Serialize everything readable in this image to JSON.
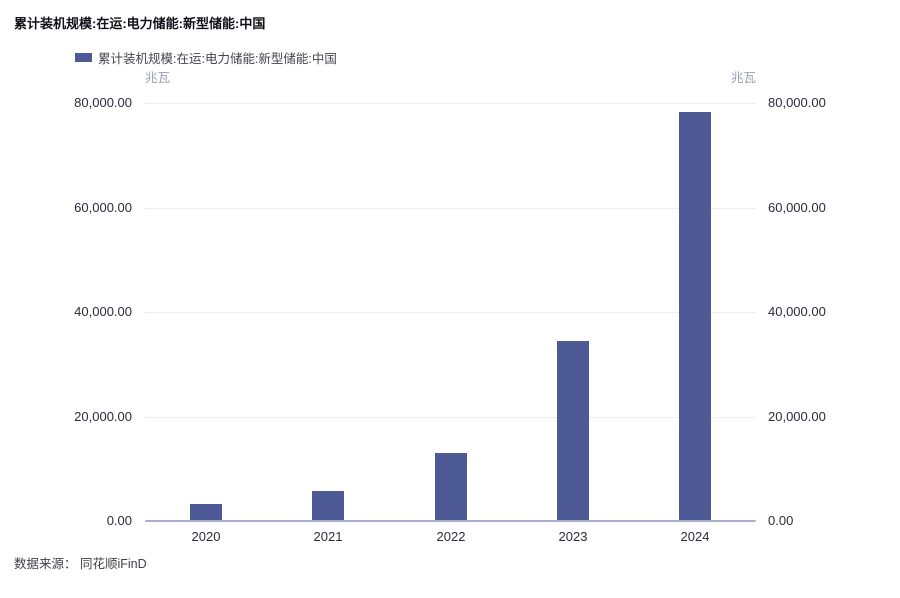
{
  "header": {
    "title": "累计装机规模:在运:电力储能:新型储能:中国"
  },
  "legend": {
    "label": "累计装机规模:在运:电力储能:新型储能:中国",
    "swatch_color": "#4d5a96"
  },
  "footer": {
    "source": "数据来源： 同花顺iFinD"
  },
  "colors": {
    "bar": "#4d5a96",
    "gridline": "#ededf6",
    "axis_line": "#a9aecf",
    "tick_text": "#2b2b3d",
    "unit_text": "#9aa0b4"
  },
  "chart_data": {
    "type": "bar",
    "title": "累计装机规模:在运:电力储能:新型储能:中国",
    "categories": [
      "2020",
      "2021",
      "2022",
      "2023",
      "2024"
    ],
    "values": [
      3270,
      5730,
      13100,
      34500,
      78300
    ],
    "series_name": "累计装机规模:在运:电力储能:新型储能:中国",
    "unit_left": "兆瓦",
    "unit_right": "兆瓦",
    "ylabel": "兆瓦",
    "xlabel": "",
    "ylim": [
      0,
      80000
    ],
    "yticks": [
      0,
      20000,
      40000,
      60000,
      80000
    ],
    "ytick_labels": [
      "0.00",
      "20,000.00",
      "40,000.00",
      "60,000.00",
      "80,000.00"
    ],
    "grid": true,
    "legend_position": "top-left",
    "dual_axis_labels": true
  }
}
